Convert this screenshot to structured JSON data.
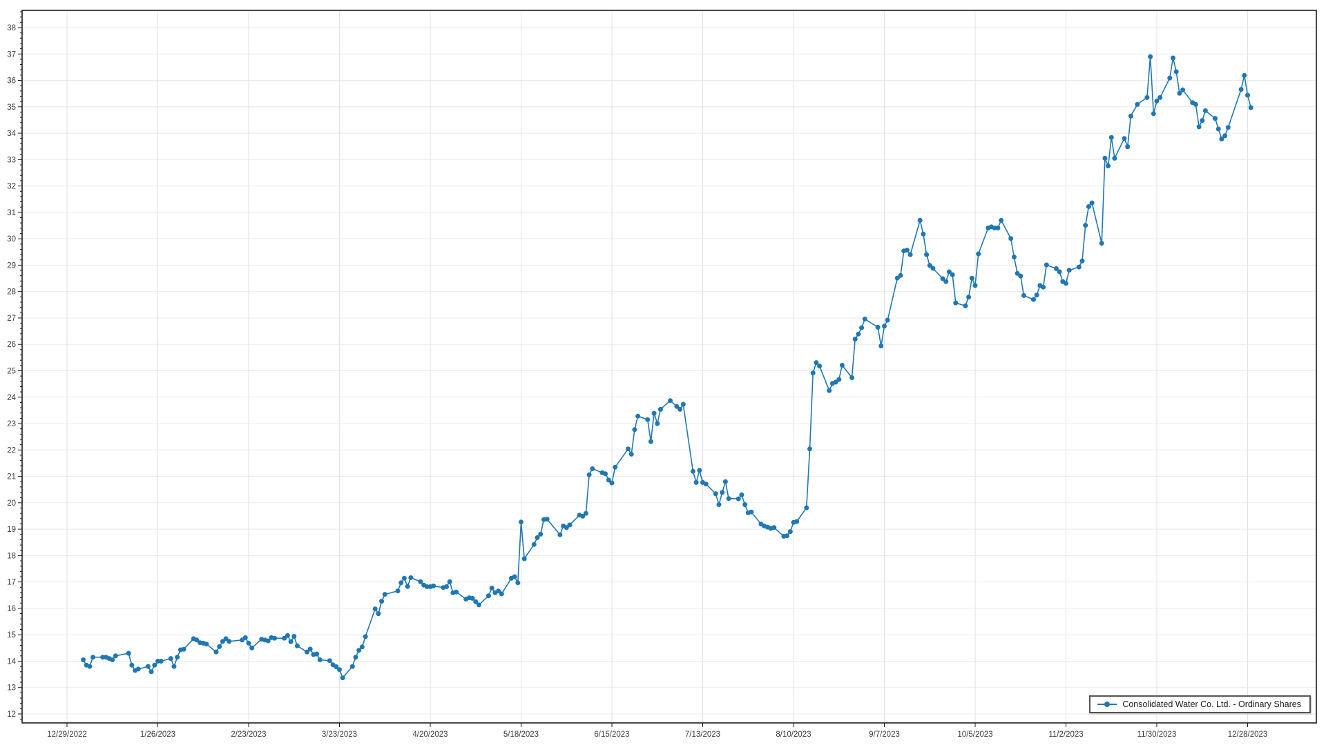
{
  "legend": {
    "label": "Consolidated Water Co. Ltd. - Ordinary Shares"
  },
  "colors": {
    "series": "#1f77b4",
    "grid_horizontal": "#e9e9e9",
    "grid_vertical": "#e2e2e2",
    "axis": "#1a1a1a",
    "tick_text": "#3a3a3a",
    "legend_border": "#555555"
  },
  "chart_data": {
    "type": "line",
    "title": "",
    "xlabel": "",
    "ylabel": "",
    "grid": true,
    "legend_position": "bottom-right",
    "y_axis": {
      "min": 12,
      "max": 38,
      "step": 1,
      "minor_step": 0.2
    },
    "x_axis": {
      "tick_labels": [
        "12/29/2022",
        "1/26/2023",
        "2/23/2023",
        "3/23/2023",
        "4/20/2023",
        "5/18/2023",
        "6/15/2023",
        "7/13/2023",
        "8/10/2023",
        "9/7/2023",
        "10/5/2023",
        "11/2/2023",
        "11/30/2023",
        "12/28/2023"
      ]
    },
    "series": [
      {
        "name": "Consolidated Water Co. Ltd. - Ordinary Shares",
        "color": "#1f77b4",
        "marker": "circle",
        "x": [
          "1/3/2023",
          "1/4/2023",
          "1/5/2023",
          "1/6/2023",
          "1/9/2023",
          "1/10/2023",
          "1/11/2023",
          "1/12/2023",
          "1/13/2023",
          "1/17/2023",
          "1/18/2023",
          "1/19/2023",
          "1/20/2023",
          "1/23/2023",
          "1/24/2023",
          "1/25/2023",
          "1/26/2023",
          "1/27/2023",
          "1/30/2023",
          "1/31/2023",
          "2/1/2023",
          "2/2/2023",
          "2/3/2023",
          "2/6/2023",
          "2/7/2023",
          "2/8/2023",
          "2/9/2023",
          "2/10/2023",
          "2/13/2023",
          "2/14/2023",
          "2/15/2023",
          "2/16/2023",
          "2/17/2023",
          "2/21/2023",
          "2/22/2023",
          "2/23/2023",
          "2/24/2023",
          "2/27/2023",
          "2/28/2023",
          "3/1/2023",
          "3/2/2023",
          "3/3/2023",
          "3/6/2023",
          "3/7/2023",
          "3/8/2023",
          "3/9/2023",
          "3/10/2023",
          "3/13/2023",
          "3/14/2023",
          "3/15/2023",
          "3/16/2023",
          "3/17/2023",
          "3/20/2023",
          "3/21/2023",
          "3/22/2023",
          "3/23/2023",
          "3/24/2023",
          "3/27/2023",
          "3/28/2023",
          "3/29/2023",
          "3/30/2023",
          "3/31/2023",
          "4/3/2023",
          "4/4/2023",
          "4/5/2023",
          "4/6/2023",
          "4/10/2023",
          "4/11/2023",
          "4/12/2023",
          "4/13/2023",
          "4/14/2023",
          "4/17/2023",
          "4/18/2023",
          "4/19/2023",
          "4/20/2023",
          "4/21/2023",
          "4/24/2023",
          "4/25/2023",
          "4/26/2023",
          "4/27/2023",
          "4/28/2023",
          "5/1/2023",
          "5/2/2023",
          "5/3/2023",
          "5/4/2023",
          "5/5/2023",
          "5/8/2023",
          "5/9/2023",
          "5/10/2023",
          "5/11/2023",
          "5/12/2023",
          "5/15/2023",
          "5/16/2023",
          "5/17/2023",
          "5/18/2023",
          "5/19/2023",
          "5/22/2023",
          "5/23/2023",
          "5/24/2023",
          "5/25/2023",
          "5/26/2023",
          "5/30/2023",
          "5/31/2023",
          "6/1/2023",
          "6/2/2023",
          "6/5/2023",
          "6/6/2023",
          "6/7/2023",
          "6/8/2023",
          "6/9/2023",
          "6/12/2023",
          "6/13/2023",
          "6/14/2023",
          "6/15/2023",
          "6/16/2023",
          "6/20/2023",
          "6/21/2023",
          "6/22/2023",
          "6/23/2023",
          "6/26/2023",
          "6/27/2023",
          "6/28/2023",
          "6/29/2023",
          "6/30/2023",
          "7/3/2023",
          "7/5/2023",
          "7/6/2023",
          "7/7/2023",
          "7/10/2023",
          "7/11/2023",
          "7/12/2023",
          "7/13/2023",
          "7/14/2023",
          "7/17/2023",
          "7/18/2023",
          "7/19/2023",
          "7/20/2023",
          "7/21/2023",
          "7/24/2023",
          "7/25/2023",
          "7/26/2023",
          "7/27/2023",
          "7/28/2023",
          "7/31/2023",
          "8/1/2023",
          "8/2/2023",
          "8/3/2023",
          "8/4/2023",
          "8/7/2023",
          "8/8/2023",
          "8/9/2023",
          "8/10/2023",
          "8/11/2023",
          "8/14/2023",
          "8/15/2023",
          "8/16/2023",
          "8/17/2023",
          "8/18/2023",
          "8/21/2023",
          "8/22/2023",
          "8/23/2023",
          "8/24/2023",
          "8/25/2023",
          "8/28/2023",
          "8/29/2023",
          "8/30/2023",
          "8/31/2023",
          "9/1/2023",
          "9/5/2023",
          "9/6/2023",
          "9/7/2023",
          "9/8/2023",
          "9/11/2023",
          "9/12/2023",
          "9/13/2023",
          "9/14/2023",
          "9/15/2023",
          "9/18/2023",
          "9/19/2023",
          "9/20/2023",
          "9/21/2023",
          "9/22/2023",
          "9/25/2023",
          "9/26/2023",
          "9/27/2023",
          "9/28/2023",
          "9/29/2023",
          "10/2/2023",
          "10/3/2023",
          "10/4/2023",
          "10/5/2023",
          "10/6/2023",
          "10/9/2023",
          "10/10/2023",
          "10/11/2023",
          "10/12/2023",
          "10/13/2023",
          "10/16/2023",
          "10/17/2023",
          "10/18/2023",
          "10/19/2023",
          "10/20/2023",
          "10/23/2023",
          "10/24/2023",
          "10/25/2023",
          "10/26/2023",
          "10/27/2023",
          "10/30/2023",
          "10/31/2023",
          "11/1/2023",
          "11/2/2023",
          "11/3/2023",
          "11/6/2023",
          "11/7/2023",
          "11/8/2023",
          "11/9/2023",
          "11/10/2023",
          "11/13/2023",
          "11/14/2023",
          "11/15/2023",
          "11/16/2023",
          "11/17/2023",
          "11/20/2023",
          "11/21/2023",
          "11/22/2023",
          "11/24/2023",
          "11/27/2023",
          "11/28/2023",
          "11/29/2023",
          "11/30/2023",
          "12/1/2023",
          "12/4/2023",
          "12/5/2023",
          "12/6/2023",
          "12/7/2023",
          "12/8/2023",
          "12/11/2023",
          "12/12/2023",
          "12/13/2023",
          "12/14/2023",
          "12/15/2023",
          "12/18/2023",
          "12/19/2023",
          "12/20/2023",
          "12/21/2023",
          "12/22/2023",
          "12/26/2023",
          "12/27/2023",
          "12/28/2023",
          "12/29/2023"
        ],
        "values": [
          14.05,
          13.85,
          13.8,
          14.15,
          14.15,
          14.15,
          14.1,
          14.05,
          14.2,
          14.3,
          13.85,
          13.65,
          13.7,
          13.8,
          13.6,
          13.85,
          14.0,
          14.0,
          14.1,
          13.8,
          14.15,
          14.43,
          14.45,
          14.85,
          14.8,
          14.7,
          14.68,
          14.65,
          14.35,
          14.55,
          14.75,
          14.85,
          14.75,
          14.8,
          14.89,
          14.68,
          14.5,
          14.83,
          14.8,
          14.77,
          14.89,
          14.87,
          14.87,
          14.97,
          14.74,
          14.94,
          14.58,
          14.35,
          14.46,
          14.25,
          14.27,
          14.05,
          14.02,
          13.86,
          13.79,
          13.68,
          13.37,
          13.8,
          14.15,
          14.41,
          14.54,
          14.93,
          15.98,
          15.8,
          16.27,
          16.53,
          16.66,
          16.97,
          17.14,
          16.83,
          17.16,
          17.01,
          16.88,
          16.82,
          16.82,
          16.85,
          16.79,
          16.82,
          17.01,
          16.59,
          16.62,
          16.35,
          16.4,
          16.38,
          16.25,
          16.13,
          16.48,
          16.77,
          16.59,
          16.66,
          16.55,
          17.14,
          17.2,
          16.97,
          19.27,
          17.88,
          18.42,
          18.68,
          18.81,
          19.36,
          19.38,
          18.79,
          19.12,
          19.06,
          19.16,
          19.53,
          19.49,
          19.6,
          21.06,
          21.29,
          21.14,
          21.1,
          20.86,
          20.75,
          21.35,
          22.04,
          21.84,
          22.77,
          23.28,
          23.15,
          22.32,
          23.39,
          23.0,
          23.54,
          23.87,
          23.65,
          23.54,
          23.73,
          21.19,
          20.77,
          21.23,
          20.77,
          20.71,
          20.34,
          19.93,
          20.39,
          20.8,
          20.16,
          20.15,
          20.3,
          19.93,
          19.62,
          19.65,
          19.19,
          19.12,
          19.08,
          19.03,
          19.06,
          18.73,
          18.75,
          18.91,
          19.26,
          19.29,
          19.81,
          22.04,
          24.92,
          25.31,
          25.18,
          24.25,
          24.52,
          24.57,
          24.67,
          25.21,
          24.74,
          26.2,
          26.39,
          26.63,
          26.96,
          26.65,
          25.94,
          26.69,
          26.92,
          28.51,
          28.61,
          29.54,
          29.57,
          29.4,
          30.7,
          30.18,
          29.4,
          28.99,
          28.88,
          28.49,
          28.38,
          28.75,
          28.64,
          27.57,
          27.46,
          27.79,
          28.51,
          28.23,
          29.43,
          30.41,
          30.45,
          30.41,
          30.41,
          30.7,
          30.01,
          29.31,
          28.69,
          28.59,
          27.85,
          27.7,
          27.87,
          28.23,
          28.17,
          29.01,
          28.87,
          28.75,
          28.38,
          28.31,
          28.81,
          28.93,
          29.16,
          30.51,
          31.22,
          31.36,
          29.83,
          33.05,
          32.76,
          33.84,
          33.05,
          33.8,
          33.49,
          34.65,
          35.09,
          35.35,
          36.9,
          34.74,
          35.22,
          35.35,
          36.09,
          36.85,
          36.33,
          35.51,
          35.64,
          35.16,
          35.09,
          34.24,
          34.48,
          34.85,
          34.56,
          34.16,
          33.78,
          33.9,
          34.22,
          35.66,
          36.19,
          35.44,
          34.97
        ]
      }
    ]
  }
}
